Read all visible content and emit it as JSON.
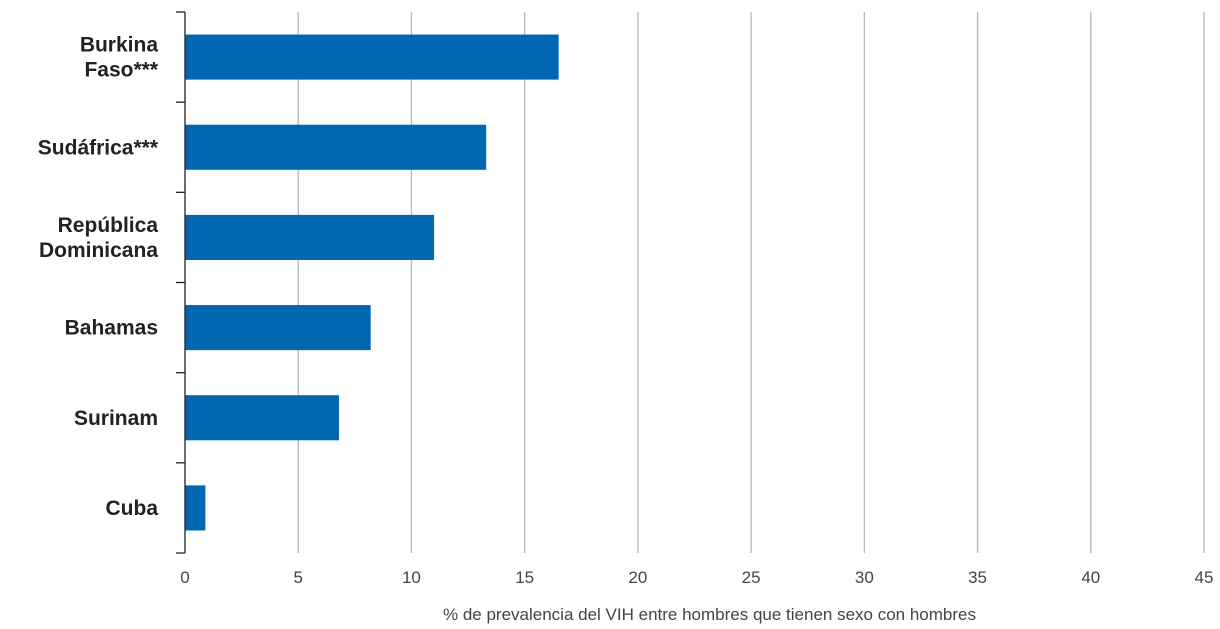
{
  "chart_data": {
    "type": "bar",
    "orientation": "horizontal",
    "categories": [
      [
        "Burkina",
        "Faso***"
      ],
      [
        "Sudáfrica***"
      ],
      [
        "República",
        "Dominicana"
      ],
      [
        "Bahamas"
      ],
      [
        "Surinam"
      ],
      [
        "Cuba"
      ]
    ],
    "values": [
      16.5,
      13.3,
      11.0,
      8.2,
      6.8,
      0.9
    ],
    "xlabel": "% de prevalencia del VIH entre hombres que tienen sexo con hombres",
    "xlim": [
      0,
      45
    ],
    "xticks": [
      0,
      5,
      10,
      15,
      20,
      25,
      30,
      35,
      40,
      45
    ],
    "grid": "vertical",
    "bar_color": "#0067b1"
  }
}
